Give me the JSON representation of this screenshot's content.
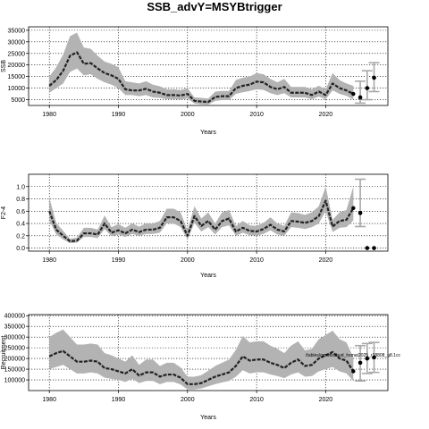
{
  "title": "SSB_advY=MSYBtrigger",
  "chart_data": [
    {
      "type": "line",
      "ylabel": "SSB",
      "xlabel": "Years",
      "xlim": [
        1977,
        2029
      ],
      "ylim": [
        2500,
        36500
      ],
      "xticks": [
        1980,
        1990,
        2000,
        2010,
        2020
      ],
      "yticks": [
        5000,
        10000,
        15000,
        20000,
        25000,
        30000,
        35000
      ],
      "ytick_labels": [
        "5000",
        "10000",
        "15000",
        "20000",
        "25000",
        "30000",
        "35000"
      ],
      "grid": true,
      "series": [
        {
          "x": [
            1980,
            1981,
            1982,
            1983,
            1984,
            1985,
            1986,
            1987,
            1988,
            1989,
            1990,
            1991,
            1992,
            1993,
            1994,
            1995,
            1996,
            1997,
            1998,
            1999,
            2000,
            2001,
            2002,
            2003,
            2004,
            2005,
            2006,
            2007,
            2008,
            2009,
            2010,
            2011,
            2012,
            2013,
            2014,
            2015,
            2016,
            2017,
            2018,
            2019,
            2020,
            2021,
            2022,
            2023,
            2024
          ],
          "y": [
            11000,
            13500,
            17500,
            24000,
            25500,
            20500,
            20800,
            18500,
            16500,
            15500,
            14000,
            9500,
            9000,
            9000,
            9700,
            8500,
            8000,
            7000,
            7000,
            6800,
            7500,
            4500,
            4200,
            4000,
            6200,
            6500,
            6500,
            10000,
            11000,
            11500,
            12800,
            12500,
            10500,
            9500,
            10500,
            8000,
            8000,
            8000,
            7000,
            8500,
            7000,
            12000,
            10000,
            9000,
            7500
          ],
          "lower": [
            8000,
            10000,
            12000,
            17000,
            18500,
            15500,
            16000,
            14000,
            12500,
            11500,
            10000,
            7000,
            7000,
            6500,
            7000,
            6000,
            5800,
            5200,
            5200,
            5000,
            5500,
            3300,
            3000,
            2900,
            4500,
            4800,
            4800,
            7500,
            8200,
            8800,
            9500,
            9200,
            7800,
            7000,
            7800,
            6000,
            6000,
            6000,
            5200,
            6300,
            5200,
            9000,
            7500,
            6700,
            5000
          ],
          "upper": [
            15000,
            19000,
            24500,
            32500,
            34000,
            27500,
            27000,
            24000,
            21500,
            20500,
            19000,
            13000,
            12500,
            12000,
            13000,
            11500,
            10800,
            9500,
            9500,
            9200,
            10000,
            6000,
            5800,
            5500,
            8500,
            8800,
            8800,
            13500,
            14500,
            15000,
            16500,
            16000,
            14000,
            12500,
            14000,
            10500,
            10500,
            10500,
            9500,
            11000,
            9500,
            16500,
            13500,
            12000,
            11000
          ]
        }
      ],
      "projections": [
        {
          "x": 2025,
          "y": 6000,
          "lower": 3500,
          "upper": 13000
        },
        {
          "x": 2026,
          "y": 10000,
          "lower": 5000,
          "upper": 17500
        },
        {
          "x": 2027,
          "y": 14500,
          "lower": 8500,
          "upper": 21000
        }
      ]
    },
    {
      "type": "line",
      "ylabel": "F2-4",
      "xlabel": "Years",
      "xlim": [
        1977,
        2029
      ],
      "ylim": [
        -0.05,
        1.2
      ],
      "xticks": [
        1980,
        1990,
        2000,
        2010,
        2020
      ],
      "yticks": [
        0,
        0.2,
        0.4,
        0.6,
        0.8,
        1
      ],
      "ytick_labels": [
        "0.0",
        "0.2",
        "0.4",
        "0.6",
        "0.8",
        "1.0"
      ],
      "grid": true,
      "series": [
        {
          "x": [
            1980,
            1981,
            1982,
            1983,
            1984,
            1985,
            1986,
            1987,
            1988,
            1989,
            1990,
            1991,
            1992,
            1993,
            1994,
            1995,
            1996,
            1997,
            1998,
            1999,
            2000,
            2001,
            2002,
            2003,
            2004,
            2005,
            2006,
            2007,
            2008,
            2009,
            2010,
            2011,
            2012,
            2013,
            2014,
            2015,
            2016,
            2017,
            2018,
            2019,
            2020,
            2021,
            2022,
            2023,
            2024
          ],
          "y": [
            0.6,
            0.3,
            0.2,
            0.11,
            0.12,
            0.24,
            0.24,
            0.22,
            0.4,
            0.25,
            0.29,
            0.24,
            0.3,
            0.26,
            0.3,
            0.3,
            0.33,
            0.5,
            0.5,
            0.44,
            0.2,
            0.52,
            0.36,
            0.44,
            0.3,
            0.44,
            0.48,
            0.27,
            0.33,
            0.28,
            0.27,
            0.31,
            0.38,
            0.3,
            0.27,
            0.44,
            0.43,
            0.41,
            0.44,
            0.52,
            0.77,
            0.35,
            0.44,
            0.46,
            0.65
          ],
          "lower": [
            0.45,
            0.22,
            0.14,
            0.08,
            0.09,
            0.18,
            0.18,
            0.16,
            0.31,
            0.19,
            0.22,
            0.18,
            0.23,
            0.2,
            0.23,
            0.23,
            0.25,
            0.4,
            0.4,
            0.34,
            0.14,
            0.41,
            0.27,
            0.34,
            0.22,
            0.34,
            0.37,
            0.2,
            0.25,
            0.21,
            0.2,
            0.23,
            0.29,
            0.22,
            0.2,
            0.34,
            0.33,
            0.31,
            0.34,
            0.4,
            0.6,
            0.26,
            0.33,
            0.34,
            0.45
          ],
          "upper": [
            0.82,
            0.41,
            0.28,
            0.15,
            0.17,
            0.33,
            0.33,
            0.3,
            0.53,
            0.34,
            0.39,
            0.33,
            0.4,
            0.35,
            0.4,
            0.4,
            0.44,
            0.64,
            0.64,
            0.58,
            0.29,
            0.68,
            0.48,
            0.58,
            0.4,
            0.58,
            0.62,
            0.36,
            0.44,
            0.37,
            0.36,
            0.41,
            0.5,
            0.4,
            0.36,
            0.58,
            0.57,
            0.54,
            0.58,
            0.68,
            1.0,
            0.46,
            0.58,
            0.62,
            1.0
          ]
        }
      ],
      "projections": [
        {
          "x": 2025,
          "y": 0.57,
          "lower": 0.35,
          "upper": 1.12
        },
        {
          "x": 2026,
          "y": 0.0,
          "lower": 0.0,
          "upper": 0.0
        },
        {
          "x": 2027,
          "y": 0.0,
          "lower": 0.0,
          "upper": 0.0
        }
      ]
    },
    {
      "type": "line",
      "ylabel": "Recruitment",
      "xlabel": "Years",
      "xlim": [
        1977,
        2029
      ],
      "ylim": [
        50000,
        405000
      ],
      "xticks": [
        1980,
        1990,
        2000,
        2010,
        2020
      ],
      "yticks": [
        100000,
        150000,
        200000,
        250000,
        300000,
        350000,
        400000
      ],
      "ytick_labels": [
        "100000",
        "150000",
        "200000",
        "250000",
        "300000",
        "350000",
        "400000"
      ],
      "grid": true,
      "annotation": "/tables/gmwtlssbud_hsmat2025_r18808_g8.1cc",
      "series": [
        {
          "x": [
            1980,
            1981,
            1982,
            1983,
            1984,
            1985,
            1986,
            1987,
            1988,
            1989,
            1990,
            1991,
            1992,
            1993,
            1994,
            1995,
            1996,
            1997,
            1998,
            1999,
            2000,
            2001,
            2002,
            2003,
            2004,
            2005,
            2006,
            2007,
            2008,
            2009,
            2010,
            2011,
            2012,
            2013,
            2014,
            2015,
            2016,
            2017,
            2018,
            2019,
            2020,
            2021,
            2022,
            2023,
            2024
          ],
          "y": [
            210000,
            225000,
            235000,
            210000,
            185000,
            185000,
            190000,
            185000,
            155000,
            150000,
            140000,
            130000,
            150000,
            120000,
            135000,
            135000,
            115000,
            125000,
            125000,
            110000,
            80000,
            80000,
            85000,
            100000,
            115000,
            125000,
            135000,
            165000,
            210000,
            190000,
            195000,
            195000,
            180000,
            170000,
            155000,
            180000,
            195000,
            165000,
            170000,
            200000,
            215000,
            230000,
            200000,
            190000,
            140000
          ],
          "lower": [
            150000,
            160000,
            170000,
            150000,
            130000,
            130000,
            135000,
            130000,
            110000,
            105000,
            100000,
            90000,
            105000,
            85000,
            95000,
            95000,
            80000,
            90000,
            90000,
            78000,
            55000,
            55000,
            60000,
            70000,
            80000,
            88000,
            95000,
            115000,
            145000,
            130000,
            135000,
            135000,
            125000,
            118000,
            108000,
            125000,
            135000,
            115000,
            118000,
            140000,
            150000,
            160000,
            140000,
            130000,
            95000
          ],
          "upper": [
            300000,
            320000,
            335000,
            300000,
            265000,
            265000,
            270000,
            265000,
            225000,
            215000,
            200000,
            185000,
            215000,
            170000,
            195000,
            195000,
            165000,
            180000,
            180000,
            158000,
            115000,
            115000,
            122000,
            143000,
            165000,
            180000,
            195000,
            240000,
            305000,
            275000,
            280000,
            280000,
            260000,
            245000,
            225000,
            260000,
            280000,
            238000,
            245000,
            290000,
            310000,
            330000,
            290000,
            275000,
            205000
          ]
        }
      ],
      "projections": [
        {
          "x": 2025,
          "y": 180000,
          "lower": 95000,
          "upper": 260000
        },
        {
          "x": 2026,
          "y": 200000,
          "lower": 130000,
          "upper": 270000
        },
        {
          "x": 2027,
          "y": 205000,
          "lower": 135000,
          "upper": 275000
        }
      ]
    }
  ],
  "colors": {
    "band": "#b3b3b3",
    "line": "#222222",
    "grid": "#000000",
    "projection_interval": "#a8a8a8",
    "point": "#000000"
  }
}
